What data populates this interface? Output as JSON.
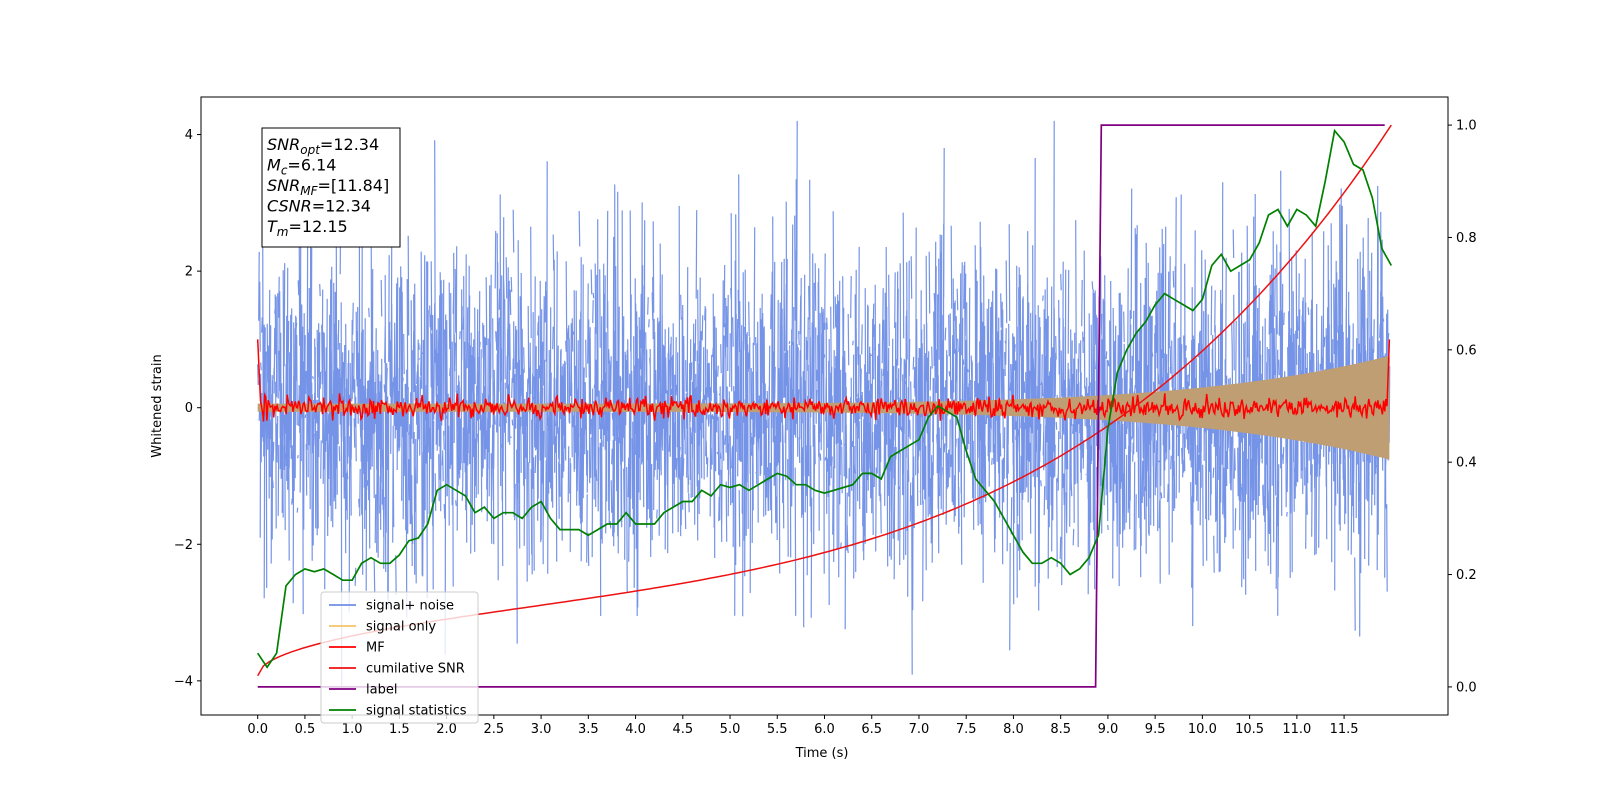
{
  "chart_data": {
    "type": "line",
    "xlabel": "Time (s)",
    "ylabel": "Whitened strain",
    "xlim": [
      -0.6,
      12.6
    ],
    "ylim": [
      -4.5,
      4.55
    ],
    "y2lim": [
      -0.05,
      1.05
    ],
    "xticks": [
      "0.0",
      "0.5",
      "1.0",
      "1.5",
      "2.0",
      "2.5",
      "3.0",
      "3.5",
      "4.0",
      "4.5",
      "5.0",
      "5.5",
      "6.0",
      "6.5",
      "7.0",
      "7.5",
      "8.0",
      "8.5",
      "9.0",
      "9.5",
      "10.0",
      "10.5",
      "11.0",
      "11.5"
    ],
    "yticks": [
      "−4",
      "−2",
      "0",
      "2",
      "4"
    ],
    "y2ticks": [
      "0.0",
      "0.2",
      "0.4",
      "0.6",
      "0.8",
      "1.0"
    ],
    "grid": false,
    "legend_position": "lower-left",
    "legend": [
      {
        "label": "signal+ noise",
        "color": "#6f8ee6"
      },
      {
        "label": "signal only",
        "color": "#f5c36a"
      },
      {
        "label": "MF",
        "color": "#ff0000"
      },
      {
        "label": "cumilative SNR",
        "color": "#ee1111"
      },
      {
        "label": "label",
        "color": "#800080"
      },
      {
        "label": "signal statistics",
        "color": "#008000"
      }
    ],
    "annotation": [
      {
        "base": "SNR",
        "sub": "opt",
        "value": "=12.34"
      },
      {
        "base": "M",
        "sub": "c",
        "value": "=6.14"
      },
      {
        "base": "SNR",
        "sub": "MF",
        "value": "=[11.84]"
      },
      {
        "base": "CSNR",
        "sub": "",
        "value": "=12.34"
      },
      {
        "base": "T",
        "sub": "m",
        "value": "=12.15"
      }
    ],
    "series": [
      {
        "name": "signal statistics",
        "axis": "right",
        "color": "#008000",
        "x": [
          0.0,
          0.1,
          0.2,
          0.3,
          0.4,
          0.5,
          0.6,
          0.7,
          0.8,
          0.9,
          1.0,
          1.1,
          1.2,
          1.3,
          1.4,
          1.5,
          1.6,
          1.7,
          1.8,
          1.9,
          2.0,
          2.1,
          2.2,
          2.3,
          2.4,
          2.5,
          2.6,
          2.7,
          2.8,
          2.9,
          3.0,
          3.1,
          3.2,
          3.3,
          3.4,
          3.5,
          3.6,
          3.7,
          3.8,
          3.9,
          4.0,
          4.1,
          4.2,
          4.3,
          4.4,
          4.5,
          4.6,
          4.7,
          4.8,
          4.9,
          5.0,
          5.1,
          5.2,
          5.3,
          5.4,
          5.5,
          5.6,
          5.7,
          5.8,
          5.9,
          6.0,
          6.1,
          6.2,
          6.3,
          6.4,
          6.5,
          6.6,
          6.7,
          6.8,
          6.9,
          7.0,
          7.1,
          7.2,
          7.3,
          7.4,
          7.5,
          7.6,
          7.7,
          7.8,
          7.9,
          8.0,
          8.1,
          8.2,
          8.3,
          8.4,
          8.5,
          8.6,
          8.7,
          8.8,
          8.9,
          9.0,
          9.1,
          9.2,
          9.3,
          9.4,
          9.5,
          9.6,
          9.7,
          9.8,
          9.9,
          10.0,
          10.1,
          10.2,
          10.3,
          10.4,
          10.5,
          10.6,
          10.7,
          10.8,
          10.9,
          11.0,
          11.1,
          11.2,
          11.3,
          11.4,
          11.5,
          11.6,
          11.7,
          11.8,
          11.9,
          12.0
        ],
        "values": [
          0.06,
          0.035,
          0.06,
          0.18,
          0.2,
          0.21,
          0.205,
          0.21,
          0.2,
          0.19,
          0.19,
          0.22,
          0.23,
          0.22,
          0.22,
          0.235,
          0.26,
          0.265,
          0.29,
          0.35,
          0.36,
          0.35,
          0.34,
          0.31,
          0.32,
          0.3,
          0.31,
          0.31,
          0.3,
          0.32,
          0.33,
          0.3,
          0.28,
          0.28,
          0.28,
          0.27,
          0.28,
          0.29,
          0.29,
          0.31,
          0.29,
          0.29,
          0.29,
          0.31,
          0.32,
          0.33,
          0.33,
          0.35,
          0.34,
          0.36,
          0.355,
          0.36,
          0.35,
          0.36,
          0.37,
          0.38,
          0.375,
          0.36,
          0.36,
          0.35,
          0.345,
          0.35,
          0.355,
          0.36,
          0.38,
          0.38,
          0.37,
          0.41,
          0.42,
          0.43,
          0.44,
          0.48,
          0.5,
          0.49,
          0.48,
          0.42,
          0.37,
          0.35,
          0.33,
          0.3,
          0.27,
          0.24,
          0.22,
          0.22,
          0.23,
          0.22,
          0.2,
          0.21,
          0.23,
          0.27,
          0.46,
          0.56,
          0.6,
          0.63,
          0.65,
          0.68,
          0.7,
          0.69,
          0.68,
          0.67,
          0.69,
          0.75,
          0.77,
          0.74,
          0.75,
          0.76,
          0.79,
          0.84,
          0.85,
          0.82,
          0.85,
          0.84,
          0.82,
          0.9,
          0.99,
          0.97,
          0.93,
          0.92,
          0.87,
          0.78,
          0.75
        ]
      }
    ]
  }
}
